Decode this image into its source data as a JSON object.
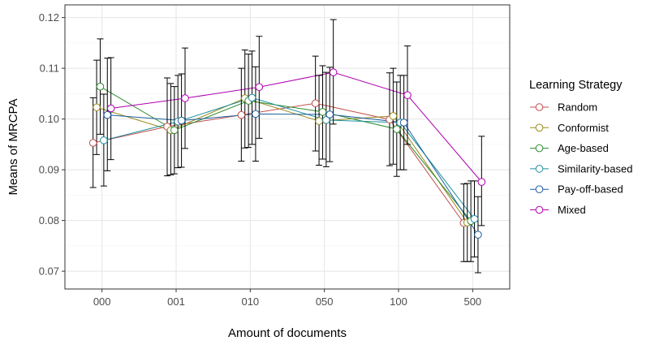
{
  "chart_data": {
    "type": "line",
    "title": "",
    "xlabel": "Amount of documents",
    "ylabel": "Means of MRCPA",
    "categories": [
      "000",
      "001",
      "010",
      "050",
      "100",
      "500"
    ],
    "ylim": [
      0.0665,
      0.1225
    ],
    "yticks": [
      0.07,
      0.08,
      0.09,
      0.1,
      0.11,
      0.12
    ],
    "ytick_labels": [
      "0.07",
      "0.08",
      "0.09",
      "0.10",
      "0.11",
      "0.12"
    ],
    "grid": true,
    "legend": {
      "title": "Learning Strategy",
      "position": "right"
    },
    "series": [
      {
        "name": "Random",
        "color": "#c0504d",
        "values": [
          0.0953,
          0.0985,
          0.1008,
          0.1031,
          0.0999,
          0.0795
        ],
        "lower": [
          0.0865,
          0.0888,
          0.0917,
          0.0937,
          0.0908,
          0.0719
        ],
        "upper": [
          0.1042,
          0.1081,
          0.11,
          0.1124,
          0.1091,
          0.0872
        ]
      },
      {
        "name": "Conformist",
        "color": "#9a8a1e",
        "values": [
          0.1023,
          0.0978,
          0.1041,
          0.0996,
          0.1006,
          0.0796
        ],
        "lower": [
          0.093,
          0.089,
          0.0943,
          0.0909,
          0.0911,
          0.0719
        ],
        "upper": [
          0.1116,
          0.107,
          0.1136,
          0.1086,
          0.11,
          0.0873
        ]
      },
      {
        "name": "Age-based",
        "color": "#2e8b2e",
        "values": [
          0.1064,
          0.0978,
          0.1036,
          0.1014,
          0.098,
          0.0799
        ],
        "lower": [
          0.097,
          0.0892,
          0.0944,
          0.0921,
          0.0887,
          0.0719
        ],
        "upper": [
          0.1158,
          0.1064,
          0.1128,
          0.1105,
          0.1073,
          0.0878
        ]
      },
      {
        "name": "Similarity-based",
        "color": "#1f8fa0",
        "values": [
          0.0958,
          0.0995,
          0.1042,
          0.0998,
          0.0993,
          0.0803
        ],
        "lower": [
          0.0868,
          0.0904,
          0.095,
          0.0906,
          0.09,
          0.0728
        ],
        "upper": [
          0.1049,
          0.1086,
          0.1134,
          0.1092,
          0.1086,
          0.0878
        ]
      },
      {
        "name": "Pay-off-based",
        "color": "#1f5f9f",
        "values": [
          0.1008,
          0.0997,
          0.101,
          0.1009,
          0.0993,
          0.0772
        ],
        "lower": [
          0.0898,
          0.0905,
          0.0917,
          0.0916,
          0.09,
          0.0697
        ],
        "upper": [
          0.112,
          0.1089,
          0.1103,
          0.1102,
          0.1086,
          0.0847
        ]
      },
      {
        "name": "Mixed",
        "color": "#b000b0",
        "values": [
          0.1021,
          0.1041,
          0.1063,
          0.1092,
          0.1047,
          0.0876
        ],
        "lower": [
          0.092,
          0.0942,
          0.0962,
          0.099,
          0.095,
          0.079
        ],
        "upper": [
          0.1121,
          0.114,
          0.1163,
          0.1196,
          0.1144,
          0.0966
        ]
      }
    ]
  }
}
